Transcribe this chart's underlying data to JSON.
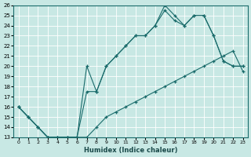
{
  "xlabel": "Humidex (Indice chaleur)",
  "bg_color": "#c8e8e4",
  "line_color": "#1a6b6b",
  "grid_color": "#b8d8d4",
  "xlim": [
    -0.5,
    23.5
  ],
  "ylim": [
    13,
    26
  ],
  "line_a_x": [
    0,
    1,
    2,
    3,
    4,
    5,
    6,
    7,
    8,
    9,
    10,
    11,
    12,
    13,
    14,
    15,
    16,
    17,
    18,
    19,
    20,
    21,
    22,
    23
  ],
  "line_a_y": [
    16,
    15,
    14,
    13,
    13,
    13,
    13,
    17.5,
    17.5,
    20,
    21,
    22,
    23,
    23,
    24,
    26,
    25,
    24,
    25,
    25,
    23,
    20.5,
    20,
    20
  ],
  "line_b_x": [
    0,
    1,
    2,
    3,
    4,
    5,
    6,
    7,
    8,
    9,
    10,
    11,
    12,
    13,
    14,
    15,
    16,
    17,
    18,
    19,
    20,
    21,
    22,
    23
  ],
  "line_b_y": [
    16,
    15,
    14,
    13,
    13,
    13,
    13,
    20,
    17.5,
    20,
    21,
    22,
    23,
    23,
    24,
    25.5,
    24.5,
    24,
    25,
    25,
    23,
    20.5,
    20,
    20
  ],
  "line_c_x": [
    0,
    1,
    2,
    3,
    4,
    5,
    6,
    7,
    8,
    9,
    10,
    11,
    12,
    13,
    14,
    15,
    16,
    17,
    18,
    19,
    20,
    21,
    22,
    23
  ],
  "line_c_y": [
    16,
    15,
    14,
    13,
    13,
    13,
    13,
    13,
    14,
    15,
    15.5,
    16,
    16.5,
    17,
    17.5,
    18,
    18.5,
    19,
    19.5,
    20,
    20.5,
    21,
    21.5,
    19.5
  ]
}
